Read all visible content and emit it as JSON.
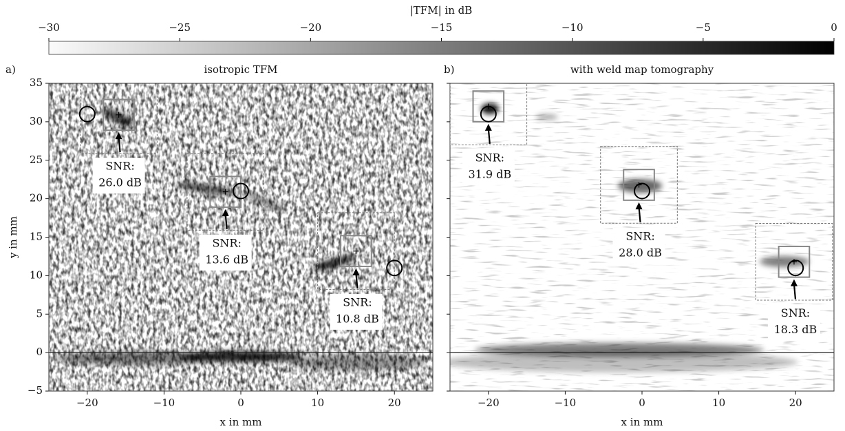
{
  "colorbar": {
    "label": "|TFM| in dB",
    "lim": [
      -30,
      0
    ],
    "ticks": [
      {
        "value": -30,
        "label": "−30"
      },
      {
        "value": -25,
        "label": "−25"
      },
      {
        "value": -20,
        "label": "−20"
      },
      {
        "value": -15,
        "label": "−15"
      },
      {
        "value": -10,
        "label": "−10"
      },
      {
        "value": -5,
        "label": "−5"
      },
      0
    ]
  },
  "chart_data": [
    {
      "type": "heatmap",
      "panel_label": "a)",
      "title": "isotropic TFM",
      "xlabel": "x in mm",
      "ylabel": "y in mm",
      "xlim": [
        -25,
        25
      ],
      "ylim": [
        -5,
        35
      ],
      "xticks": [
        {
          "value": -20,
          "label": "−20"
        },
        {
          "value": -10,
          "label": "−10"
        },
        0,
        10,
        20
      ],
      "yticks": [
        {
          "value": -5,
          "label": "−5"
        },
        0,
        5,
        10,
        15,
        20,
        25,
        30,
        35
      ],
      "hline": 0,
      "defects": [
        {
          "true_position": [
            -20,
            31
          ],
          "detected_position": [
            -15.9,
            30.9
          ],
          "snr_label": [
            "SNR:",
            "26.0 dB"
          ]
        },
        {
          "true_position": [
            0,
            21
          ],
          "detected_position": [
            -2.0,
            20.9
          ],
          "snr_label": [
            "SNR:",
            "13.6 dB"
          ]
        },
        {
          "true_position": [
            20,
            11
          ],
          "detected_position": [
            15.0,
            13.2
          ],
          "snr_label": [
            "SNR:",
            "10.8 dB"
          ]
        }
      ]
    },
    {
      "type": "heatmap",
      "panel_label": "b)",
      "title": "with weld map tomography",
      "xlabel": "x in mm",
      "sharey": true,
      "xlim": [
        -25,
        25
      ],
      "ylim": [
        -5,
        35
      ],
      "xticks": [
        {
          "value": -20,
          "label": "−20"
        },
        {
          "value": -10,
          "label": "−10"
        },
        0,
        10,
        20
      ],
      "hline": 0,
      "defects": [
        {
          "true_position": [
            -20,
            31
          ],
          "detected_position": [
            -20.0,
            32.0
          ],
          "snr_label": [
            "SNR:",
            "31.9 dB"
          ]
        },
        {
          "true_position": [
            0,
            21
          ],
          "detected_position": [
            -0.4,
            21.8
          ],
          "snr_label": [
            "SNR:",
            "28.0 dB"
          ]
        },
        {
          "true_position": [
            20,
            11
          ],
          "detected_position": [
            19.8,
            11.8
          ],
          "snr_label": [
            "SNR:",
            "18.3 dB"
          ]
        }
      ]
    }
  ]
}
